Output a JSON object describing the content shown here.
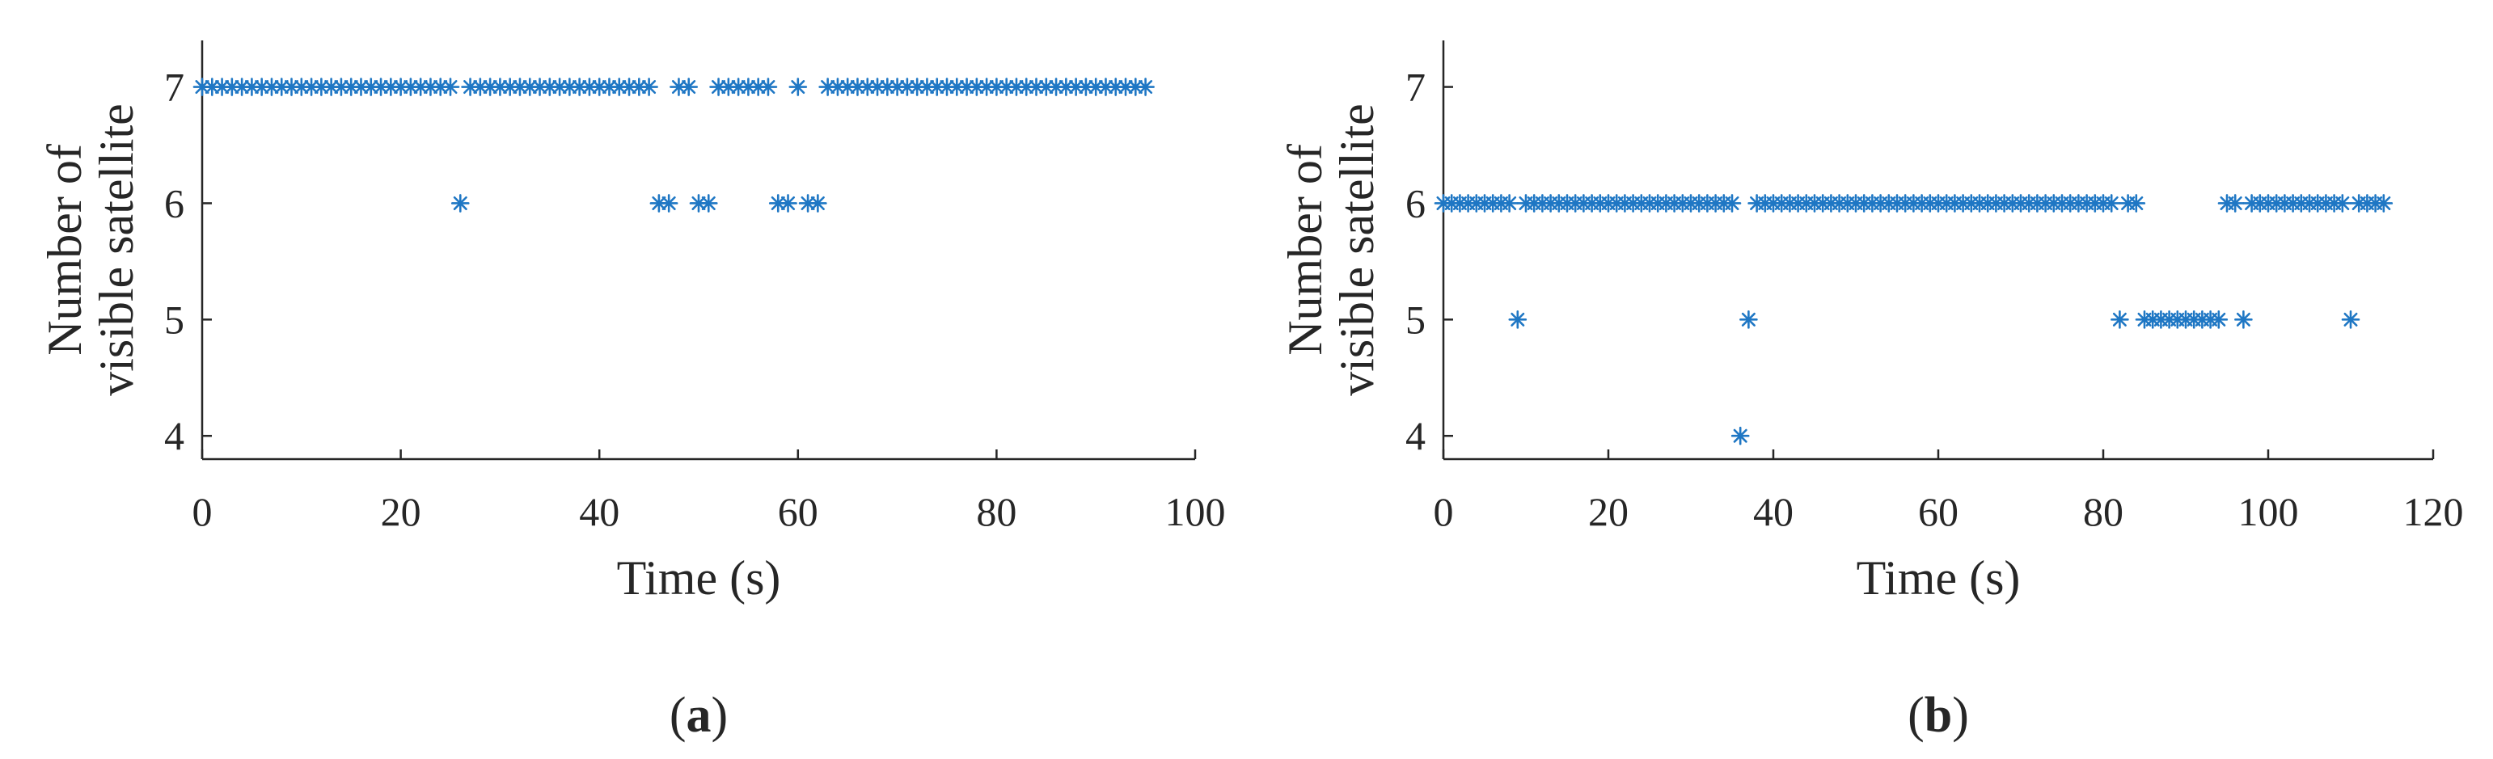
{
  "figure": {
    "colors": {
      "marker": "#1f77c4",
      "axis": "#262626"
    }
  },
  "chart_data": [
    {
      "type": "scatter",
      "panel_label": "a",
      "xlabel": "Time (s)",
      "ylabel_line1": "Number of",
      "ylabel_line2": "visible satellite",
      "xlim": [
        0,
        100
      ],
      "ylim": [
        3.8,
        7.4
      ],
      "xticks": [
        0,
        20,
        40,
        60,
        80,
        100
      ],
      "yticks": [
        4,
        5,
        6,
        7
      ],
      "marker": "asterisk",
      "grid": false,
      "series": [
        {
          "x": [
            0,
            1,
            2,
            3,
            4,
            5,
            6,
            7,
            8,
            9,
            10,
            11,
            12,
            13,
            14,
            15,
            16,
            17,
            18,
            19,
            20,
            21,
            22,
            23,
            24,
            25,
            26,
            27,
            28,
            29,
            30,
            31,
            32,
            33,
            34,
            35,
            36,
            37,
            38,
            39,
            40,
            41,
            42,
            43,
            44,
            45,
            46,
            47,
            48,
            49,
            50,
            51,
            52,
            53,
            54,
            55,
            56,
            57,
            58,
            59,
            60,
            61,
            62,
            63,
            64,
            65,
            66,
            67,
            68,
            69,
            70,
            71,
            72,
            73,
            74,
            75,
            76,
            77,
            78,
            79,
            80,
            81,
            82,
            83,
            84,
            85,
            86,
            87,
            88,
            89,
            90,
            91,
            92,
            93,
            94,
            95
          ],
          "y": [
            7,
            7,
            7,
            7,
            7,
            7,
            7,
            7,
            7,
            7,
            7,
            7,
            7,
            7,
            7,
            7,
            7,
            7,
            7,
            7,
            7,
            7,
            7,
            7,
            7,
            7,
            6,
            7,
            7,
            7,
            7,
            7,
            7,
            7,
            7,
            7,
            7,
            7,
            7,
            7,
            7,
            7,
            7,
            7,
            7,
            7,
            6,
            6,
            7,
            7,
            6,
            6,
            7,
            7,
            7,
            7,
            7,
            7,
            6,
            6,
            7,
            6,
            6,
            7,
            7,
            7,
            7,
            7,
            7,
            7,
            7,
            7,
            7,
            7,
            7,
            7,
            7,
            7,
            7,
            7,
            7,
            7,
            7,
            7,
            7,
            7,
            7,
            7,
            7,
            7,
            7,
            7,
            7,
            7,
            7,
            7
          ]
        }
      ]
    },
    {
      "type": "scatter",
      "panel_label": "b",
      "xlabel": "Time (s)",
      "ylabel_line1": "Number of",
      "ylabel_line2": "visible satellite",
      "xlim": [
        0,
        120
      ],
      "ylim": [
        3.8,
        7.4
      ],
      "xticks": [
        0,
        20,
        40,
        60,
        80,
        100,
        120
      ],
      "yticks": [
        4,
        5,
        6,
        7
      ],
      "marker": "asterisk",
      "grid": false,
      "series": [
        {
          "x": [
            0,
            1,
            2,
            3,
            4,
            5,
            6,
            7,
            8,
            9,
            10,
            11,
            12,
            13,
            14,
            15,
            16,
            17,
            18,
            19,
            20,
            21,
            22,
            23,
            24,
            25,
            26,
            27,
            28,
            29,
            30,
            31,
            32,
            33,
            34,
            35,
            36,
            37,
            38,
            39,
            40,
            41,
            42,
            43,
            44,
            45,
            46,
            47,
            48,
            49,
            50,
            51,
            52,
            53,
            54,
            55,
            56,
            57,
            58,
            59,
            60,
            61,
            62,
            63,
            64,
            65,
            66,
            67,
            68,
            69,
            70,
            71,
            72,
            73,
            74,
            75,
            76,
            77,
            78,
            79,
            80,
            81,
            82,
            83,
            84,
            85,
            86,
            87,
            88,
            89,
            90,
            91,
            92,
            93,
            94,
            95,
            96,
            97,
            98,
            99,
            100,
            101,
            102,
            103,
            104,
            105,
            106,
            107,
            108,
            109,
            110,
            111,
            112,
            113,
            114
          ],
          "y": [
            6,
            6,
            6,
            6,
            6,
            6,
            6,
            6,
            6,
            5,
            6,
            6,
            6,
            6,
            6,
            6,
            6,
            6,
            6,
            6,
            6,
            6,
            6,
            6,
            6,
            6,
            6,
            6,
            6,
            6,
            6,
            6,
            6,
            6,
            6,
            6,
            4,
            5,
            6,
            6,
            6,
            6,
            6,
            6,
            6,
            6,
            6,
            6,
            6,
            6,
            6,
            6,
            6,
            6,
            6,
            6,
            6,
            6,
            6,
            6,
            6,
            6,
            6,
            6,
            6,
            6,
            6,
            6,
            6,
            6,
            6,
            6,
            6,
            6,
            6,
            6,
            6,
            6,
            6,
            6,
            6,
            6,
            5,
            6,
            6,
            5,
            5,
            5,
            5,
            5,
            5,
            5,
            5,
            5,
            5,
            6,
            6,
            5,
            6,
            6,
            6,
            6,
            6,
            6,
            6,
            6,
            6,
            6,
            6,
            6,
            5,
            6,
            6,
            6,
            6
          ]
        }
      ]
    }
  ]
}
